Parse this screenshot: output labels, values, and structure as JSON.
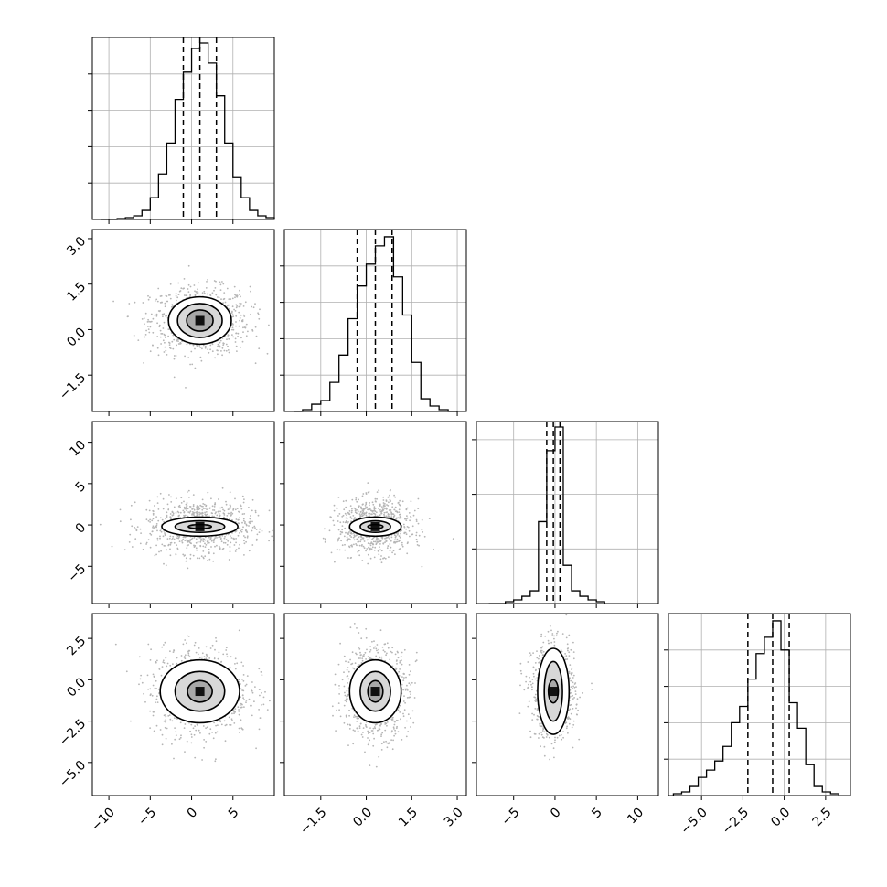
{
  "chart_data": {
    "type": "scatter",
    "title": "",
    "parameters": [
      {
        "range": [
          -12,
          10
        ],
        "hist_ticks": [
          0.2,
          0.4,
          0.6,
          0.8
        ],
        "hist_edges": [
          -11,
          -10,
          -9,
          -8,
          -7,
          -6,
          -5,
          -4,
          -3,
          -2,
          -1,
          0,
          1,
          2,
          3,
          4,
          5,
          6,
          7,
          8,
          9,
          10
        ],
        "hist": [
          0,
          0,
          0.005,
          0.01,
          0.02,
          0.05,
          0.12,
          0.25,
          0.42,
          0.66,
          0.81,
          0.94,
          0.97,
          0.86,
          0.68,
          0.42,
          0.23,
          0.12,
          0.05,
          0.02,
          0.01
        ],
        "quantiles": [
          -1.0,
          1.0,
          3.0
        ],
        "tick_values": [
          -10,
          -5,
          0,
          5
        ],
        "tick_labels": [
          "−10",
          "−5",
          "0",
          "5"
        ]
      },
      {
        "range": [
          -2.7,
          3.3
        ],
        "hist_ticks": [
          0.2,
          0.4,
          0.6,
          0.8
        ],
        "hist_edges": [
          -2.4,
          -2.1,
          -1.8,
          -1.5,
          -1.2,
          -0.9,
          -0.6,
          -0.3,
          0.0,
          0.3,
          0.6,
          0.9,
          1.2,
          1.5,
          1.8,
          2.1,
          2.4,
          2.7,
          3.0
        ],
        "hist": [
          0,
          0.01,
          0.04,
          0.06,
          0.16,
          0.31,
          0.51,
          0.69,
          0.81,
          0.91,
          0.96,
          0.74,
          0.53,
          0.27,
          0.07,
          0.03,
          0.01,
          0
        ],
        "quantiles": [
          -0.3,
          0.3,
          0.85
        ],
        "tick_values": [
          -1.5,
          0.0,
          1.5,
          3.0
        ],
        "tick_labels": [
          "−1.5",
          "0.0",
          "1.5",
          "3.0"
        ]
      },
      {
        "range": [
          -9.5,
          12.5
        ],
        "hist_ticks": [
          0.3,
          0.6,
          0.9
        ],
        "hist_edges": [
          -8,
          -7,
          -6,
          -5,
          -4,
          -3,
          -2,
          -1,
          0,
          1,
          2,
          3,
          4,
          5,
          6
        ],
        "hist": [
          0,
          0,
          0.01,
          0.02,
          0.04,
          0.07,
          0.45,
          0.84,
          0.97,
          0.21,
          0.07,
          0.04,
          0.02,
          0.01
        ],
        "quantiles": [
          -1.0,
          -0.2,
          0.6
        ],
        "tick_values": [
          -5,
          0,
          5,
          10
        ],
        "tick_labels": [
          "−5",
          "0",
          "5",
          "10"
        ]
      },
      {
        "range": [
          -7.0,
          4.0
        ],
        "hist_ticks": [
          0.2,
          0.4,
          0.6,
          0.8
        ],
        "hist_edges": [
          -6.7,
          -6.2,
          -5.7,
          -5.2,
          -4.7,
          -4.2,
          -3.7,
          -3.2,
          -2.7,
          -2.2,
          -1.7,
          -1.2,
          -0.7,
          -0.2,
          0.3,
          0.8,
          1.3,
          1.8,
          2.3,
          2.8,
          3.3
        ],
        "hist": [
          0.01,
          0.02,
          0.05,
          0.1,
          0.14,
          0.19,
          0.27,
          0.4,
          0.49,
          0.64,
          0.78,
          0.87,
          0.96,
          0.8,
          0.51,
          0.37,
          0.17,
          0.05,
          0.02,
          0.01
        ],
        "quantiles": [
          -2.2,
          -0.7,
          0.3
        ],
        "tick_values": [
          -5.0,
          -2.5,
          0.0,
          2.5
        ],
        "tick_labels": [
          "−5.0",
          "−2.5",
          "0.0",
          "2.5"
        ]
      }
    ],
    "pairs": [
      {
        "x": 0,
        "y": 1,
        "center": [
          1.0,
          0.3
        ],
        "spread": [
          3.0,
          0.55
        ],
        "contours": [
          [
            1.6,
            0.35
          ],
          [
            2.7,
            0.56
          ],
          [
            3.8,
            0.78
          ]
        ]
      },
      {
        "x": 0,
        "y": 2,
        "center": [
          1.0,
          -0.2
        ],
        "spread": [
          3.2,
          1.6
        ],
        "contours": [
          [
            1.4,
            0.25
          ],
          [
            3.0,
            0.7
          ],
          [
            4.6,
            1.15
          ]
        ]
      },
      {
        "x": 0,
        "y": 3,
        "center": [
          1.0,
          -0.7
        ],
        "spread": [
          3.0,
          1.35
        ],
        "contours": [
          [
            1.5,
            0.65
          ],
          [
            3.0,
            1.2
          ],
          [
            4.8,
            1.9
          ]
        ]
      },
      {
        "x": 1,
        "y": 2,
        "center": [
          0.3,
          -0.2
        ],
        "spread": [
          0.6,
          1.6
        ],
        "contours": [
          [
            0.25,
            0.25
          ],
          [
            0.5,
            0.7
          ],
          [
            0.85,
            1.15
          ]
        ]
      },
      {
        "x": 1,
        "y": 3,
        "center": [
          0.3,
          -0.7
        ],
        "spread": [
          0.55,
          1.35
        ],
        "contours": [
          [
            0.25,
            0.65
          ],
          [
            0.5,
            1.2
          ],
          [
            0.85,
            1.9
          ]
        ]
      },
      {
        "x": 2,
        "y": 3,
        "center": [
          -0.2,
          -0.7
        ],
        "spread": [
          1.3,
          1.4
        ],
        "contours": [
          [
            0.6,
            0.7
          ],
          [
            1.1,
            1.8
          ],
          [
            1.9,
            2.6
          ]
        ]
      }
    ],
    "grid": true,
    "scatter_samples_per_panel": 900
  }
}
